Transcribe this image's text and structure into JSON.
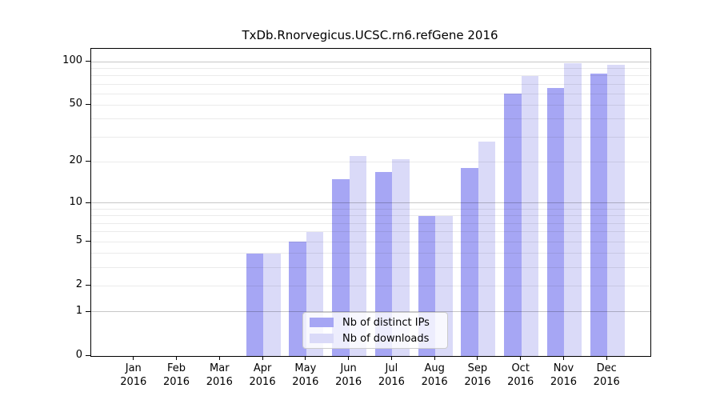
{
  "chart_data": {
    "type": "bar",
    "title": "TxDb.Rnorvegicus.UCSC.rn6.refGene 2016",
    "categories": [
      "Jan",
      "Feb",
      "Mar",
      "Apr",
      "May",
      "Jun",
      "Jul",
      "Aug",
      "Sep",
      "Oct",
      "Nov",
      "Dec"
    ],
    "year_label": "2016",
    "series": [
      {
        "name": "Nb of distinct IPs",
        "color": "#a6a6f4",
        "values": [
          0,
          0,
          0,
          4,
          5,
          15,
          17,
          8,
          18,
          60,
          66,
          83
        ]
      },
      {
        "name": "Nb of downloads",
        "color": "#dadaf8",
        "values": [
          0,
          0,
          0,
          4,
          6,
          22,
          21,
          8,
          28,
          80,
          98,
          95
        ]
      }
    ],
    "xlabel": "",
    "ylabel": "",
    "yscale": "log1p",
    "ylim": [
      0,
      123
    ],
    "yticks": [
      0,
      1,
      2,
      5,
      10,
      20,
      50,
      100
    ],
    "major_gridlines": [
      1,
      10,
      100
    ],
    "minor_gridlines": [
      2,
      3,
      4,
      5,
      6,
      7,
      8,
      9,
      20,
      30,
      40,
      50,
      60,
      70,
      80,
      90
    ],
    "grid": "on",
    "legend_position": "lower-center"
  },
  "style_colors": {
    "axis": "#000000",
    "major_grid": "rgba(0,0,0,0.22)",
    "minor_grid": "rgba(0,0,0,0.08)",
    "background": "#ffffff",
    "legend_border": "#cccccc"
  }
}
